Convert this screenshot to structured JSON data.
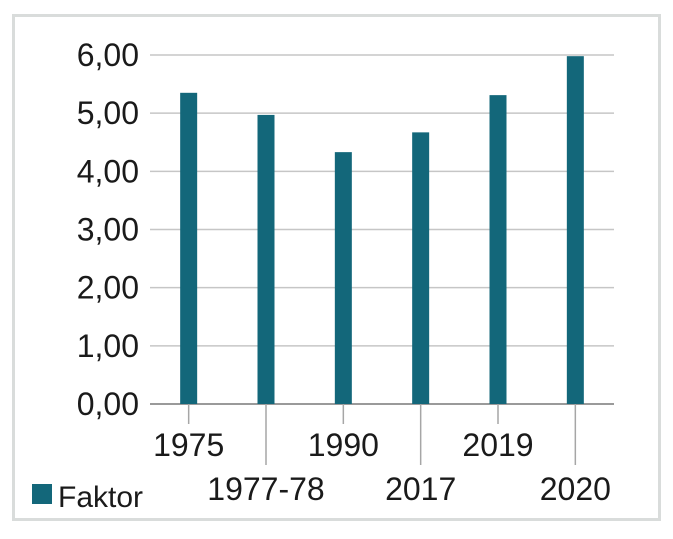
{
  "chart_data": {
    "type": "bar",
    "categories": [
      "1975",
      "1977-78",
      "1990",
      "2017",
      "2019",
      "2020"
    ],
    "series": [
      {
        "name": "Faktor",
        "values": [
          5.35,
          4.97,
          4.33,
          4.67,
          5.31,
          5.98
        ],
        "color": "#13677a"
      }
    ],
    "yticks": [
      "0,00",
      "1,00",
      "2,00",
      "3,00",
      "4,00",
      "5,00",
      "6,00"
    ],
    "ylim": [
      0,
      6
    ],
    "grid": true,
    "legend_position": "bottom-left"
  }
}
